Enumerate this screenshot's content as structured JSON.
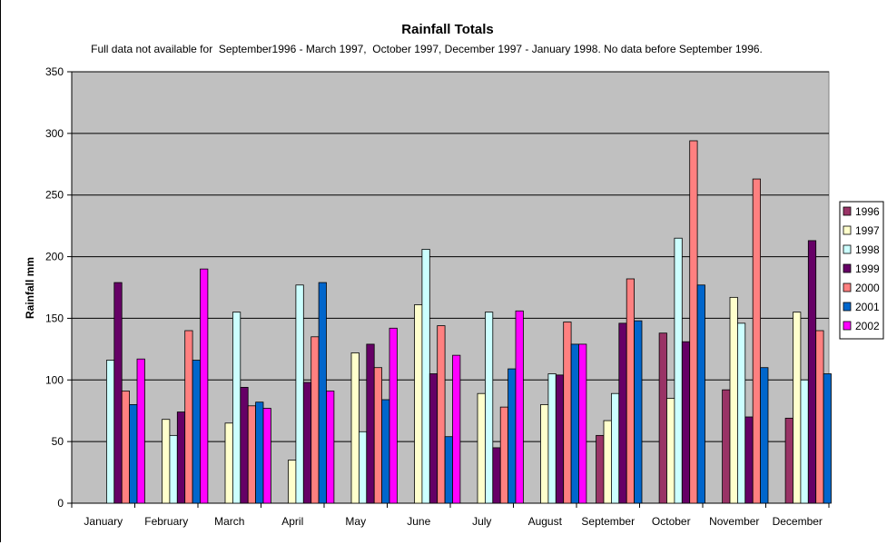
{
  "chart_data": {
    "type": "bar",
    "title": "Rainfall Totals",
    "subtitle": "Full data not available for  September1996 - March 1997,  October 1997, December 1997 - January 1998. No data before September 1996.",
    "xlabel": "",
    "ylabel": "Rainfall mm",
    "ylim": [
      0,
      350
    ],
    "yticks": [
      0,
      50,
      100,
      150,
      200,
      250,
      300,
      350
    ],
    "grid": true,
    "legend_position": "right",
    "plot_background": "#c0c0c0",
    "categories": [
      "January",
      "February",
      "March",
      "April",
      "May",
      "June",
      "July",
      "August",
      "September",
      "October",
      "November",
      "December"
    ],
    "series": [
      {
        "name": "1996",
        "color": "#993366",
        "values": [
          null,
          null,
          null,
          null,
          null,
          null,
          null,
          null,
          55,
          138,
          92,
          69
        ]
      },
      {
        "name": "1997",
        "color": "#ffffcc",
        "values": [
          null,
          68,
          65,
          35,
          122,
          161,
          89,
          80,
          67,
          85,
          167,
          155
        ]
      },
      {
        "name": "1998",
        "color": "#ccffff",
        "values": [
          116,
          55,
          155,
          177,
          58,
          206,
          155,
          105,
          89,
          215,
          146,
          100
        ]
      },
      {
        "name": "1999",
        "color": "#660066",
        "values": [
          179,
          74,
          94,
          98,
          129,
          105,
          45,
          104,
          146,
          131,
          70,
          213
        ]
      },
      {
        "name": "2000",
        "color": "#ff8080",
        "values": [
          91,
          140,
          79,
          135,
          110,
          144,
          78,
          147,
          182,
          294,
          263,
          140
        ]
      },
      {
        "name": "2001",
        "color": "#0066cc",
        "values": [
          80,
          116,
          82,
          179,
          84,
          54,
          109,
          129,
          148,
          177,
          110,
          105
        ]
      },
      {
        "name": "2002",
        "color": "#ff00ff",
        "values": [
          117,
          190,
          77,
          91,
          142,
          120,
          156,
          129,
          null,
          null,
          null,
          null
        ]
      }
    ]
  }
}
